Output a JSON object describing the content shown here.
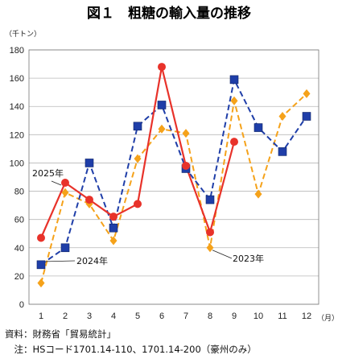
{
  "chart_data": {
    "type": "line",
    "title": "図１　粗糖の輸入量の推移",
    "ylabel_unit": "（千トン）",
    "xlabel_unit": "（月）",
    "categories": [
      "1",
      "2",
      "3",
      "4",
      "5",
      "6",
      "7",
      "8",
      "9",
      "10",
      "11",
      "12"
    ],
    "ylim": [
      0,
      180
    ],
    "yticks": [
      "0",
      "20",
      "40",
      "60",
      "80",
      "100",
      "120",
      "140",
      "160",
      "180"
    ],
    "grid": true,
    "series": [
      {
        "name": "2025年",
        "color": "#e8322a",
        "style": "solid",
        "marker": "circle",
        "values": [
          47,
          86,
          74,
          62,
          71,
          168,
          98,
          51,
          115,
          null,
          null,
          null
        ]
      },
      {
        "name": "2024年",
        "color": "#1f3ea8",
        "style": "dashed",
        "marker": "square",
        "values": [
          28,
          40,
          100,
          54,
          126,
          141,
          96,
          74,
          159,
          125,
          108,
          133
        ]
      },
      {
        "name": "2023年",
        "color": "#f5a21a",
        "style": "dashed",
        "marker": "diamond",
        "values": [
          15,
          79,
          71,
          45,
          103,
          124,
          121,
          40,
          144,
          78,
          133,
          149
        ]
      }
    ],
    "annotations": [
      {
        "text": "2025年",
        "series": 0
      },
      {
        "text": "2024年",
        "series": 1
      },
      {
        "text": "2023年",
        "series": 2
      }
    ]
  },
  "footnotes": {
    "source": "資料：財務省「貿易統計」",
    "note": "　注：HSコード1701.14-110、1701.14-200（豪州のみ）"
  }
}
